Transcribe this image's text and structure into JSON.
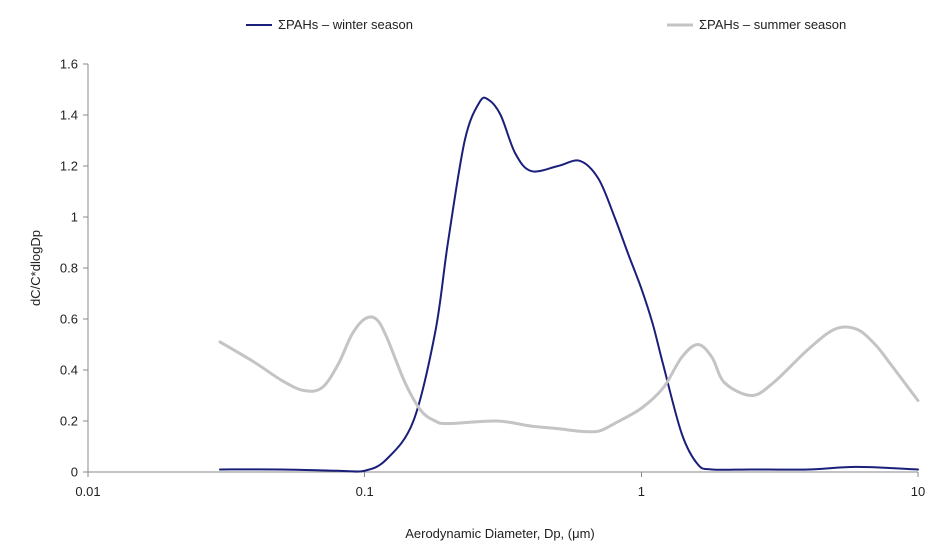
{
  "chart_data": {
    "type": "line",
    "title": "",
    "xlabel": "Aerodynamic Diameter, Dp, (μm)",
    "ylabel": "dC/C*dlogDp",
    "x_scale": "log",
    "xlim": [
      0.01,
      10
    ],
    "ylim": [
      0,
      1.6
    ],
    "x_ticks": [
      0.01,
      0.1,
      1,
      10
    ],
    "x_tick_labels": [
      "0.01",
      "0.1",
      "1",
      "10"
    ],
    "y_ticks": [
      0,
      0.2,
      0.4,
      0.6,
      0.8,
      1,
      1.2,
      1.4,
      1.6
    ],
    "y_tick_labels": [
      "0",
      "0.2",
      "0.4",
      "0.6",
      "0.8",
      "1",
      "1.2",
      "1.4",
      "1.6"
    ],
    "grid": false,
    "legend_position": "top",
    "series": [
      {
        "name": "ΣPAHs – winter season",
        "color": "#1a1f7a",
        "x": [
          0.03,
          0.05,
          0.08,
          0.1,
          0.12,
          0.15,
          0.18,
          0.2,
          0.23,
          0.26,
          0.28,
          0.31,
          0.35,
          0.4,
          0.5,
          0.6,
          0.7,
          0.8,
          0.9,
          1.0,
          1.1,
          1.2,
          1.4,
          1.6,
          1.8,
          2.5,
          4.0,
          6.0,
          10.0
        ],
        "y": [
          0.01,
          0.01,
          0.005,
          0.005,
          0.05,
          0.2,
          0.55,
          0.9,
          1.3,
          1.45,
          1.46,
          1.4,
          1.25,
          1.18,
          1.2,
          1.22,
          1.15,
          1.0,
          0.85,
          0.72,
          0.58,
          0.42,
          0.15,
          0.03,
          0.01,
          0.01,
          0.01,
          0.02,
          0.01
        ]
      },
      {
        "name": "ΣPAHs – summer season",
        "color": "#c4c4c4",
        "x": [
          0.03,
          0.04,
          0.05,
          0.06,
          0.07,
          0.08,
          0.09,
          0.1,
          0.11,
          0.12,
          0.14,
          0.16,
          0.18,
          0.2,
          0.3,
          0.4,
          0.5,
          0.6,
          0.7,
          0.8,
          1.0,
          1.2,
          1.4,
          1.6,
          1.8,
          2.0,
          2.5,
          3.0,
          4.0,
          5.0,
          6.0,
          7.0,
          8.0,
          10.0
        ],
        "y": [
          0.51,
          0.43,
          0.36,
          0.32,
          0.33,
          0.42,
          0.54,
          0.6,
          0.6,
          0.53,
          0.35,
          0.24,
          0.2,
          0.19,
          0.2,
          0.18,
          0.17,
          0.16,
          0.16,
          0.19,
          0.25,
          0.33,
          0.45,
          0.5,
          0.45,
          0.35,
          0.3,
          0.35,
          0.48,
          0.56,
          0.56,
          0.5,
          0.42,
          0.28
        ]
      }
    ]
  }
}
